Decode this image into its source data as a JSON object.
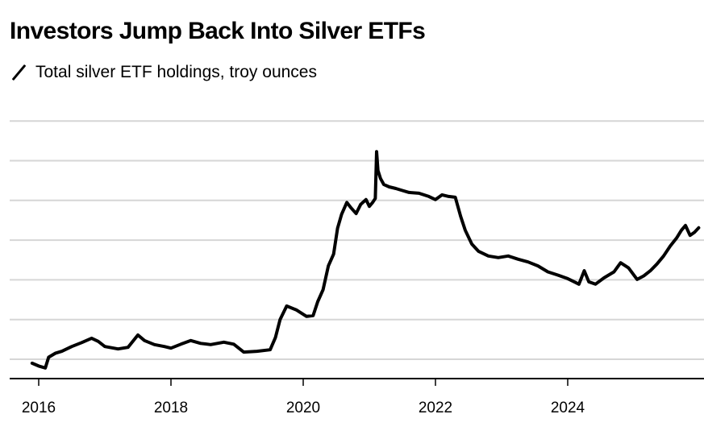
{
  "chart_data": {
    "type": "line",
    "title": "Investors Jump Back Into Silver ETFs",
    "subtitle": "Total silver ETF holdings, troy ounces",
    "xlabel": "",
    "ylabel": "",
    "y_units_note": "Relative scale in gridline units (no y-axis values shown)",
    "xlim": [
      2015.85,
      2026.1
    ],
    "ylim": [
      -0.47,
      6.0
    ],
    "x_ticks": [
      2016,
      2018,
      2020,
      2022,
      2024
    ],
    "x_tick_labels": [
      "2016",
      "2018",
      "2020",
      "2022",
      "2024"
    ],
    "y_gridlines": [
      0,
      1,
      2,
      3,
      4,
      5,
      6
    ],
    "grid": true,
    "legend": "top-left",
    "series": [
      {
        "name": "Total silver ETF holdings, troy ounces",
        "color": "#000000",
        "x": [
          2015.9,
          2016.0,
          2016.1,
          2016.15,
          2016.25,
          2016.35,
          2016.5,
          2016.65,
          2016.8,
          2016.9,
          2017.0,
          2017.2,
          2017.35,
          2017.5,
          2017.6,
          2017.75,
          2017.9,
          2018.0,
          2018.15,
          2018.3,
          2018.45,
          2018.6,
          2018.8,
          2018.95,
          2019.1,
          2019.3,
          2019.5,
          2019.58,
          2019.65,
          2019.75,
          2019.9,
          2020.05,
          2020.15,
          2020.22,
          2020.3,
          2020.38,
          2020.46,
          2020.52,
          2020.58,
          2020.66,
          2020.72,
          2020.8,
          2020.87,
          2020.95,
          2021.0,
          2021.05,
          2021.09,
          2021.11,
          2021.13,
          2021.17,
          2021.22,
          2021.3,
          2021.4,
          2021.5,
          2021.6,
          2021.75,
          2021.9,
          2022.0,
          2022.1,
          2022.2,
          2022.3,
          2022.38,
          2022.45,
          2022.55,
          2022.65,
          2022.8,
          2022.95,
          2023.1,
          2023.25,
          2023.4,
          2023.55,
          2023.7,
          2023.85,
          2024.0,
          2024.1,
          2024.17,
          2024.25,
          2024.32,
          2024.42,
          2024.55,
          2024.7,
          2024.8,
          2024.92,
          2025.05,
          2025.15,
          2025.25,
          2025.35,
          2025.45,
          2025.55,
          2025.65,
          2025.72,
          2025.78,
          2025.85,
          2025.92,
          2025.98
        ],
        "y": [
          -0.1,
          -0.17,
          -0.22,
          0.05,
          0.15,
          0.2,
          0.32,
          0.42,
          0.53,
          0.45,
          0.32,
          0.26,
          0.3,
          0.61,
          0.47,
          0.37,
          0.32,
          0.28,
          0.38,
          0.47,
          0.4,
          0.37,
          0.43,
          0.38,
          0.18,
          0.2,
          0.24,
          0.55,
          1.0,
          1.34,
          1.24,
          1.08,
          1.1,
          1.45,
          1.75,
          2.35,
          2.65,
          3.3,
          3.65,
          3.95,
          3.82,
          3.67,
          3.9,
          4.02,
          3.85,
          3.95,
          4.05,
          5.23,
          4.75,
          4.55,
          4.4,
          4.34,
          4.3,
          4.25,
          4.2,
          4.18,
          4.1,
          4.02,
          4.14,
          4.1,
          4.08,
          3.6,
          3.25,
          2.9,
          2.72,
          2.6,
          2.56,
          2.6,
          2.52,
          2.45,
          2.35,
          2.2,
          2.12,
          2.03,
          1.95,
          1.89,
          2.23,
          1.95,
          1.89,
          2.05,
          2.2,
          2.43,
          2.3,
          2.01,
          2.1,
          2.23,
          2.4,
          2.6,
          2.85,
          3.06,
          3.25,
          3.37,
          3.12,
          3.2,
          3.31
        ]
      }
    ]
  }
}
